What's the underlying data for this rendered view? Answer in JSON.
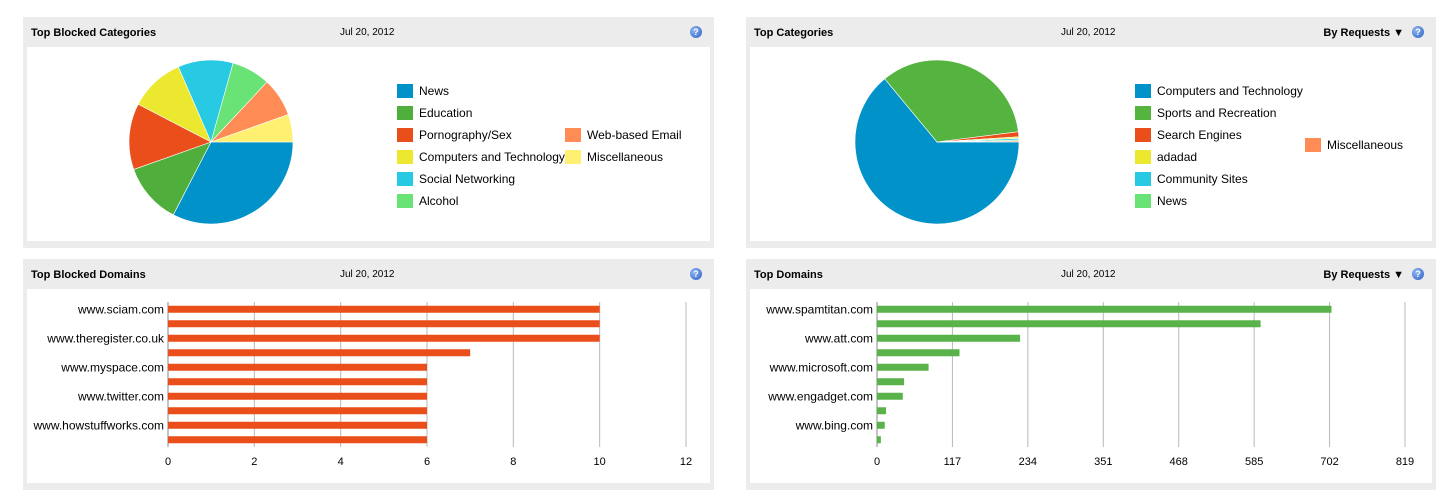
{
  "panels": {
    "top_blocked_categories": {
      "title": "Top Blocked Categories",
      "date": "Jul 20, 2012",
      "help": "?"
    },
    "top_categories": {
      "title": "Top Categories",
      "date": "Jul 20, 2012",
      "sort_label": "By Requests ▼",
      "help": "?"
    },
    "top_blocked_domains": {
      "title": "Top Blocked Domains",
      "date": "Jul 20, 2012",
      "help": "?"
    },
    "top_domains": {
      "title": "Top Domains",
      "date": "Jul 20, 2012",
      "sort_label": "By Requests ▼",
      "help": "?"
    }
  },
  "chart_data": [
    {
      "type": "pie",
      "title": "Top Blocked Categories",
      "labels": [
        "News",
        "Education",
        "Pornography/Sex",
        "Computers and Technology",
        "Social Networking",
        "Alcohol",
        "Web-based Email",
        "Miscellaneous"
      ],
      "values": [
        30,
        11,
        12,
        10,
        10,
        7,
        7,
        5
      ],
      "colors": [
        "#0092c8",
        "#4fae3c",
        "#e94e1b",
        "#ece830",
        "#27c9e3",
        "#69e375",
        "#ff8c55",
        "#fff071"
      ],
      "legend_position": "right"
    },
    {
      "type": "pie",
      "title": "Top Categories",
      "labels": [
        "Computers and Technology",
        "Sports and Recreation",
        "Search Engines",
        "adadad",
        "Community Sites",
        "News",
        "Miscellaneous"
      ],
      "values": [
        64,
        34,
        1,
        0.3,
        0.3,
        0.2,
        0.2
      ],
      "colors": [
        "#0092c8",
        "#55b43f",
        "#e94e1b",
        "#ece830",
        "#27c9e3",
        "#69e375",
        "#ff8c55"
      ],
      "legend_position": "right"
    },
    {
      "type": "bar",
      "orientation": "horizontal",
      "title": "Top Blocked Domains",
      "categories": [
        "www.sciam.com",
        "",
        "www.theregister.co.uk",
        "",
        "www.myspace.com",
        "",
        "www.twitter.com",
        "",
        "www.howstuffworks.com",
        ""
      ],
      "values": [
        10,
        10,
        10,
        7,
        6,
        6,
        6,
        6,
        6,
        6
      ],
      "xlim": [
        0,
        12
      ],
      "xticks": [
        "0",
        "2",
        "4",
        "6",
        "8",
        "10",
        "12"
      ],
      "color": "#e94e1b",
      "grid": true
    },
    {
      "type": "bar",
      "orientation": "horizontal",
      "title": "Top Domains",
      "categories": [
        "www.spamtitan.com",
        "",
        "www.att.com",
        "",
        "www.microsoft.com",
        "",
        "www.engadget.com",
        "",
        "www.bing.com",
        ""
      ],
      "values": [
        705,
        595,
        222,
        128,
        80,
        42,
        40,
        14,
        12,
        6
      ],
      "xlim": [
        0,
        819
      ],
      "xticks": [
        "0",
        "117",
        "234",
        "351",
        "468",
        "585",
        "702",
        "819"
      ],
      "color": "#5ab34a",
      "grid": true
    }
  ]
}
